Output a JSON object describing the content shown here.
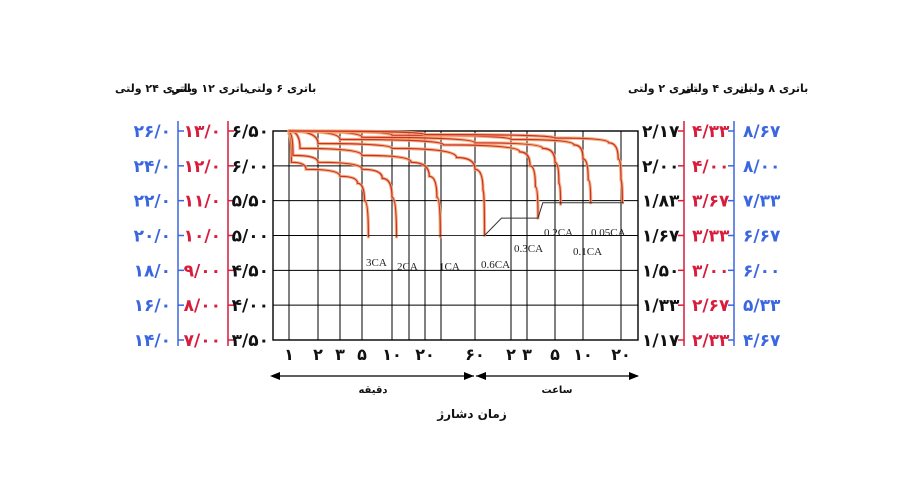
{
  "chart_data": {
    "type": "line",
    "title": "",
    "xlabel": "زمان دشارژ",
    "x_scale": "log",
    "x_groups": [
      {
        "label": "دقیقه",
        "ticks": [
          "۱",
          "۲",
          "۳",
          "۵",
          "۱۰",
          "۲۰",
          "۶۰"
        ]
      },
      {
        "label": "ساعت",
        "ticks": [
          "۲",
          "۳",
          "۵",
          "۱۰",
          "۲۰"
        ]
      }
    ],
    "left_axes": [
      {
        "label": "باتری ۲۴ ولتی",
        "color": "#3a66e0",
        "ticks": [
          "۲۶/۰",
          "۲۴/۰",
          "۲۲/۰",
          "۲۰/۰",
          "۱۸/۰",
          "۱۶/۰",
          "۱۴/۰"
        ]
      },
      {
        "label": "باتری ۱۲ ولتی",
        "color": "#d81c3c",
        "ticks": [
          "۱۳/۰",
          "۱۲/۰",
          "۱۱/۰",
          "۱۰/۰",
          "۹/۰۰",
          "۸/۰۰",
          "۷/۰۰"
        ]
      },
      {
        "label": "باتری ۶ ولتی",
        "color": "#111111",
        "ticks": [
          "۶/۵۰",
          "۶/۰۰",
          "۵/۵۰",
          "۵/۰۰",
          "۴/۵۰",
          "۴/۰۰",
          "۳/۵۰"
        ]
      }
    ],
    "right_axes": [
      {
        "label": "باتری ۲ ولتی",
        "color": "#111111",
        "ticks": [
          "۲/۱۷",
          "۲/۰۰",
          "۱/۸۳",
          "۱/۶۷",
          "۱/۵۰",
          "۱/۳۳",
          "۱/۱۷"
        ]
      },
      {
        "label": "باتری ۴ ولتی",
        "color": "#d81c3c",
        "ticks": [
          "۴/۳۳",
          "۴/۰۰",
          "۳/۶۷",
          "۳/۳۳",
          "۳/۰۰",
          "۲/۶۷",
          "۲/۳۳"
        ]
      },
      {
        "label": "باتری ۸ ولتی",
        "color": "#3a66e0",
        "ticks": [
          "۸/۶۷",
          "۸/۰۰",
          "۷/۳۳",
          "۶/۶۷",
          "۶/۰۰",
          "۵/۳۳",
          "۴/۶۷"
        ]
      }
    ],
    "ylim_6v": [
      3.5,
      6.5
    ],
    "series": [
      {
        "name": "3CA",
        "points": [
          [
            1,
            6.46
          ],
          [
            1.06,
            6.05
          ],
          [
            1.5,
            5.95
          ],
          [
            3,
            5.85
          ],
          [
            4.5,
            5.75
          ],
          [
            5.3,
            5.5
          ],
          [
            5.8,
            4.98
          ]
        ]
      },
      {
        "name": "2CA",
        "points": [
          [
            1,
            6.48
          ],
          [
            1.1,
            6.15
          ],
          [
            2,
            6.05
          ],
          [
            5,
            5.95
          ],
          [
            8,
            5.82
          ],
          [
            10,
            5.55
          ],
          [
            11,
            4.98
          ]
        ]
      },
      {
        "name": "1CA",
        "points": [
          [
            1,
            6.5
          ],
          [
            1.3,
            6.25
          ],
          [
            5,
            6.15
          ],
          [
            15,
            6.05
          ],
          [
            22,
            5.85
          ],
          [
            26,
            5.55
          ],
          [
            28,
            4.98
          ]
        ]
      },
      {
        "name": "0.6CA",
        "points": [
          [
            1,
            6.5
          ],
          [
            2,
            6.32
          ],
          [
            10,
            6.25
          ],
          [
            40,
            6.12
          ],
          [
            60,
            5.95
          ],
          [
            70,
            5.65
          ],
          [
            72,
            5.0
          ]
        ]
      },
      {
        "name": "0.3CA",
        "points": [
          [
            1,
            6.5
          ],
          [
            3,
            6.38
          ],
          [
            30,
            6.3
          ],
          [
            150,
            6.2
          ],
          [
            190,
            6.0
          ],
          [
            210,
            5.7
          ],
          [
            220,
            5.25
          ]
        ]
      },
      {
        "name": "0.2CA",
        "points": [
          [
            1,
            6.5
          ],
          [
            5,
            6.41
          ],
          [
            60,
            6.33
          ],
          [
            240,
            6.25
          ],
          [
            300,
            6.05
          ],
          [
            330,
            5.75
          ],
          [
            345,
            5.45
          ]
        ]
      },
      {
        "name": "0.1CA",
        "points": [
          [
            1,
            6.5
          ],
          [
            10,
            6.44
          ],
          [
            120,
            6.38
          ],
          [
            480,
            6.3
          ],
          [
            600,
            6.1
          ],
          [
            660,
            5.8
          ],
          [
            690,
            5.47
          ]
        ]
      },
      {
        "name": "0.05CA",
        "points": [
          [
            1,
            6.5
          ],
          [
            20,
            6.45
          ],
          [
            300,
            6.4
          ],
          [
            960,
            6.33
          ],
          [
            1140,
            6.1
          ],
          [
            1200,
            5.8
          ],
          [
            1230,
            5.47
          ]
        ]
      }
    ],
    "cutoff_line": [
      [
        5.8,
        5.0
      ],
      [
        72,
        5.0
      ],
      [
        100,
        5.25
      ],
      [
        220,
        5.25
      ],
      [
        240,
        5.47
      ],
      [
        1260,
        5.47
      ]
    ],
    "annotations": [
      "3CA",
      "2CA",
      "1CA",
      "0.6CA",
      "0.3CA",
      "0.2CA",
      "0.1CA",
      "0.05CA"
    ],
    "grid": true
  }
}
